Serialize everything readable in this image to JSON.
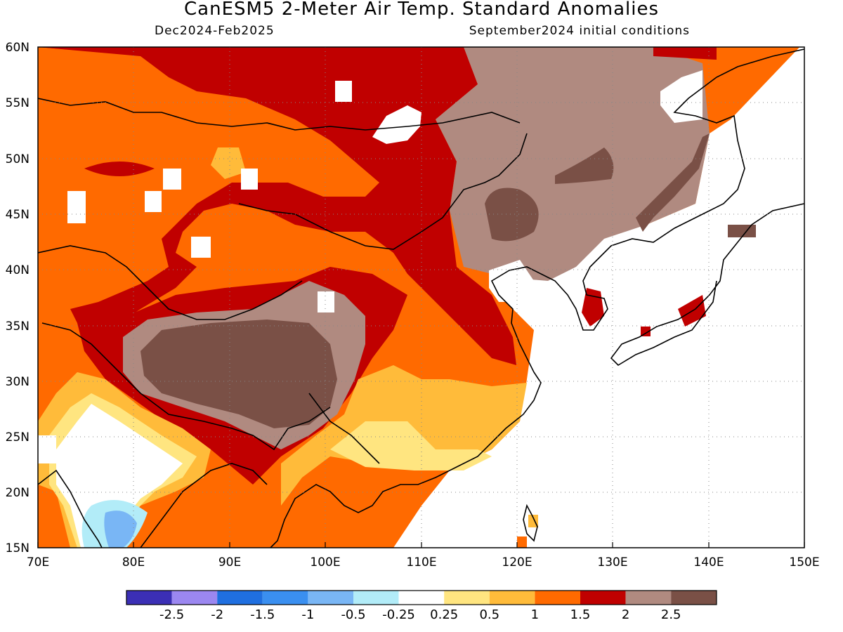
{
  "title": "CanESM5 2-Meter Air Temp. Standard Anomalies",
  "period": "Dec2024-Feb2025",
  "init": "September2024 initial conditions",
  "map": {
    "lon_labels": [
      "70E",
      "80E",
      "90E",
      "100E",
      "110E",
      "120E",
      "130E",
      "140E",
      "150E"
    ],
    "lat_labels": [
      "60N",
      "55N",
      "50N",
      "45N",
      "40N",
      "35N",
      "30N",
      "25N",
      "20N",
      "15N"
    ],
    "lon_range": [
      70,
      150
    ],
    "lat_range": [
      15,
      60
    ],
    "gridlines": "dotted"
  },
  "colorbar": {
    "colors": [
      "#3b2fb5",
      "#9b87f0",
      "#1f6fe0",
      "#3a8ff0",
      "#79b6f5",
      "#b2ecf8",
      "#ffffff",
      "#ffe580",
      "#ffbb3a",
      "#ff6a00",
      "#c00000",
      "#b08a80",
      "#7a5046"
    ],
    "labels": [
      "-2.5",
      "-2",
      "-1.5",
      "-1",
      "-0.5",
      "-0.25",
      "0.25",
      "0.5",
      "1",
      "1.5",
      "2",
      "2.5"
    ]
  }
}
